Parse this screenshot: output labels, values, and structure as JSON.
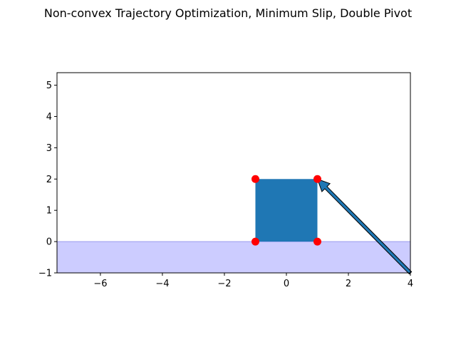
{
  "chart_data": {
    "type": "scatter",
    "title": "Non-convex Trajectory Optimization, Minimum Slip, Double Pivot",
    "xlabel": "",
    "ylabel": "",
    "xlim": [
      -7.4,
      4.0
    ],
    "ylim": [
      -1.0,
      5.4
    ],
    "x_ticks": [
      -6,
      -4,
      -2,
      0,
      2,
      4
    ],
    "y_ticks": [
      -1,
      0,
      1,
      2,
      3,
      4,
      5
    ],
    "x_tick_labels": [
      "−6",
      "−4",
      "−2",
      "0",
      "2",
      "4"
    ],
    "y_tick_labels": [
      "−1",
      "0",
      "1",
      "2",
      "3",
      "4",
      "5"
    ],
    "grid": false,
    "ground": {
      "y_top": 0,
      "y_bottom": -1,
      "color": "#ccccff"
    },
    "box": {
      "x": [
        -1,
        1
      ],
      "y": [
        0,
        2
      ],
      "color": "#1f77b4"
    },
    "contact_points": {
      "x": [
        -1,
        -1,
        1,
        1
      ],
      "y": [
        0,
        2,
        2,
        0
      ],
      "color": "#ff0000"
    },
    "force_arrow": {
      "from": [
        4.0,
        -1.0
      ],
      "to": [
        1.0,
        2.0
      ],
      "color": "#1f77b4",
      "edge_color": "#000000"
    }
  }
}
